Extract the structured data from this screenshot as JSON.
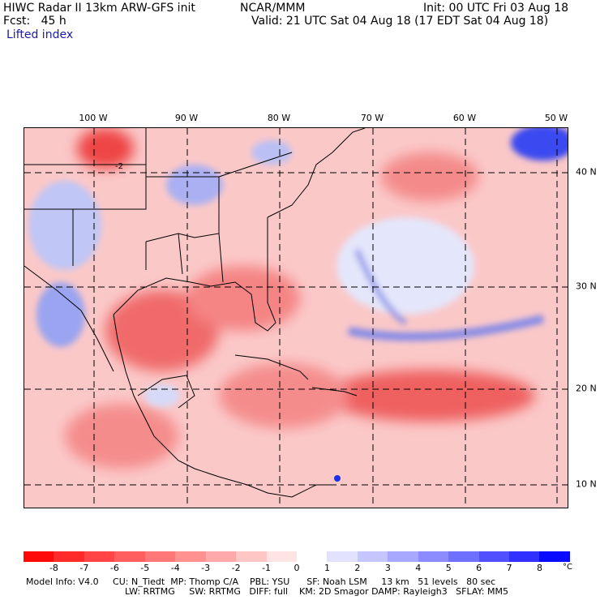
{
  "header": {
    "title": "HIWC Radar II 13km ARW-GFS init",
    "org": "NCAR/MMM",
    "init": "Init: 00 UTC Fri 03 Aug 18",
    "fcst": "Fcst:   45 h",
    "valid": "Valid: 21 UTC Sat 04 Aug 18 (17 EDT Sat 04 Aug 18)",
    "field": "Lifted index"
  },
  "map": {
    "lon_labels": [
      "100 W",
      "90 W",
      "80 W",
      "70 W",
      "60 W",
      "50 W"
    ],
    "lat_labels": [
      "40 N",
      "30 N",
      "20 N",
      "10 N"
    ],
    "contour_label": "-2"
  },
  "colorbar": {
    "labels": [
      "-8",
      "-7",
      "-6",
      "-5",
      "-4",
      "-3",
      "-2",
      "-1",
      "0",
      "1",
      "2",
      "3",
      "4",
      "5",
      "6",
      "7",
      "8"
    ],
    "unit": "°C",
    "colors": [
      "#ff0a0a",
      "#ff2a2a",
      "#ff4545",
      "#ff5f5f",
      "#ff7878",
      "#ff9191",
      "#ffaaaa",
      "#ffc6c6",
      "#ffe4e4",
      "#ffffff",
      "#e2e2ff",
      "#c6c6ff",
      "#a8a8ff",
      "#8c8cff",
      "#7070ff",
      "#5050ff",
      "#3030ff",
      "#0a0aff"
    ]
  },
  "footer": {
    "line1": "Model Info: V4.0     CU: N_Tiedt  MP: Thomp C/A    PBL: YSU      SF: Noah LSM     13 km   51 levels   80 sec",
    "line2": "LW: RRTMG     SW: RRTMG   DIFF: full    KM: 2D Smagor DAMP: Rayleigh3   SFLAY: MM5"
  }
}
